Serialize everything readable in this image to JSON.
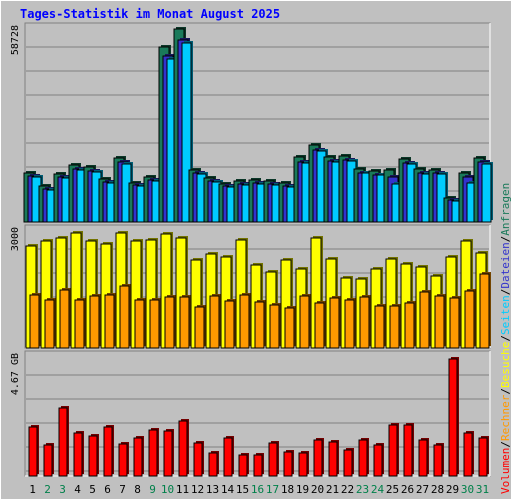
{
  "chart_data": {
    "type": "bar",
    "title": "Tages-Statistik im Monat August 2025",
    "categories": [
      "1",
      "2",
      "3",
      "4",
      "5",
      "6",
      "7",
      "8",
      "9",
      "10",
      "11",
      "12",
      "13",
      "14",
      "15",
      "16",
      "17",
      "18",
      "19",
      "20",
      "21",
      "22",
      "23",
      "24",
      "25",
      "26",
      "27",
      "28",
      "29",
      "30",
      "31"
    ],
    "weekend_days": [
      "2",
      "3",
      "9",
      "10",
      "16",
      "17",
      "23",
      "24",
      "30",
      "31"
    ],
    "panels": [
      {
        "id": "top",
        "ylabel": "58728",
        "ymax": 58728,
        "series": [
          {
            "name": "Anfragen",
            "color": "#1a7a5a",
            "values": [
              15200,
              11000,
              14800,
              17500,
              16900,
              13200,
              19600,
              12100,
              13800,
              53900,
              59300,
              16100,
              13500,
              11800,
              12600,
              12800,
              12500,
              11900,
              19900,
              23700,
              20000,
              20400,
              16300,
              15600,
              15900,
              19400,
              16200,
              16100,
              7300,
              15100,
              19600
            ]
          },
          {
            "name": "Dateien",
            "color": "#3333cc",
            "values": [
              14100,
              10200,
              13700,
              16400,
              15700,
              12300,
              18300,
              11300,
              12900,
              51100,
              56000,
              15000,
              12600,
              11000,
              11700,
              12000,
              11700,
              11100,
              18500,
              22100,
              18700,
              19100,
              15200,
              14600,
              13700,
              18100,
              15100,
              15000,
              6800,
              13900,
              18300
            ]
          },
          {
            "name": "Seiten",
            "color": "#00ccff",
            "values": [
              13900,
              9900,
              13400,
              16100,
              15400,
              12100,
              17900,
              11100,
              12700,
              50000,
              55000,
              14700,
              12400,
              10800,
              11400,
              11700,
              11400,
              10900,
              18200,
              21700,
              18300,
              18700,
              15000,
              14300,
              11800,
              17800,
              14800,
              14700,
              6500,
              12000,
              17900
            ]
          }
        ]
      },
      {
        "id": "middle",
        "ylabel": "3000",
        "ymax": 3000,
        "series": [
          {
            "name": "Besuche",
            "color": "#ffff00",
            "values": [
              2650,
              2800,
              2860,
              3000,
              2780,
              2700,
              3000,
              2800,
              2820,
              2980,
              2870,
              2300,
              2460,
              2380,
              2820,
              2170,
              1990,
              2290,
              2050,
              2870,
              2310,
              1830,
              1790,
              2050,
              2330,
              2180,
              2120,
              1870,
              2380,
              2780,
              2470
            ]
          },
          {
            "name": "Rechner",
            "color": "#ff9900",
            "values": [
              1370,
              1250,
              1520,
              1250,
              1360,
              1370,
              1610,
              1260,
              1250,
              1320,
              1330,
              1080,
              1360,
              1220,
              1390,
              1190,
              1130,
              1040,
              1360,
              1180,
              1300,
              1260,
              1320,
              1090,
              1100,
              1180,
              1470,
              1360,
              1300,
              1480,
              1930
            ]
          }
        ]
      },
      {
        "id": "bottom",
        "ylabel": "4.67 GB",
        "ymax": 4.67,
        "series": [
          {
            "name": "Volumen",
            "color": "#ff0000",
            "values": [
              1.94,
              1.25,
              2.73,
              1.7,
              1.59,
              1.96,
              1.28,
              1.51,
              1.83,
              1.8,
              2.21,
              1.3,
              0.93,
              1.51,
              0.82,
              0.82,
              1.31,
              0.97,
              0.93,
              1.44,
              1.37,
              1.03,
              1.45,
              1.23,
              2.04,
              2.04,
              1.43,
              1.23,
              4.67,
              1.7,
              1.51
            ]
          }
        ]
      }
    ],
    "legend": [
      {
        "label": "Volumen",
        "color": "#ff0000"
      },
      {
        "label": "Rechner",
        "color": "#ff9900"
      },
      {
        "label": "Besuche",
        "color": "#ffff00"
      },
      {
        "label": "Seiten",
        "color": "#00ccff"
      },
      {
        "label": "Dateien",
        "color": "#3333cc"
      },
      {
        "label": "Anfragen",
        "color": "#1a7a5a"
      }
    ],
    "legend_separator": "/",
    "legend_placement": "right (vertical)",
    "colors": {
      "background": "#c0c0c0",
      "weekday_label": "#000000",
      "weekend_label": "#00804a",
      "title": "#0000ff"
    }
  }
}
